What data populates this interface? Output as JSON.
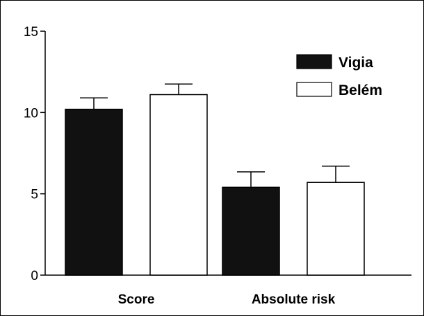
{
  "chart_data": {
    "type": "bar",
    "title": "",
    "xlabel": "",
    "ylabel": "",
    "categories": [
      "Score",
      "Absolute risk"
    ],
    "ylim": [
      0,
      15
    ],
    "yticks": [
      0,
      5,
      10,
      15
    ],
    "grid": false,
    "legend_position": "top-right",
    "series": [
      {
        "name": "Vigia",
        "color": "#111111",
        "values": [
          10.2,
          5.4
        ],
        "errors": [
          0.7,
          0.95
        ]
      },
      {
        "name": "Belém",
        "color": "#ffffff",
        "values": [
          11.1,
          5.7
        ],
        "errors": [
          0.65,
          1.0
        ]
      }
    ]
  }
}
